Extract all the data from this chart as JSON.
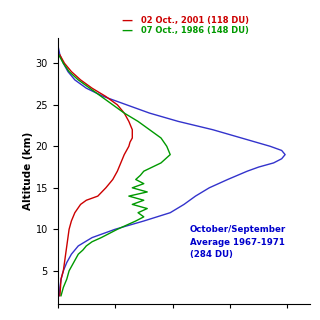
{
  "ylabel": "Altitude (km)",
  "ylim": [
    1,
    33
  ],
  "xlim": [
    0,
    22
  ],
  "yticks": [
    5,
    10,
    15,
    20,
    25,
    30
  ],
  "background_color": "#ffffff",
  "legend1": "02 Oct., 2001 (118 DU)",
  "legend1_color": "#cc0000",
  "legend2": "07 Oct., 1986 (148 DU)",
  "legend2_color": "#009900",
  "annotation": "October/September\nAverage 1967-1971\n(284 DU)",
  "annotation_color": "#0000cc",
  "blue_alt": [
    2,
    3,
    4,
    5,
    6,
    7,
    8,
    9,
    10,
    11,
    12,
    13,
    14,
    15,
    16,
    17,
    17.5,
    18,
    18.5,
    19,
    19.5,
    20,
    21,
    22,
    23,
    24,
    25,
    26,
    27,
    28,
    29,
    30,
    31,
    32
  ],
  "blue_oz": [
    0.15,
    0.2,
    0.3,
    0.5,
    0.8,
    1.2,
    1.8,
    3.0,
    5.0,
    7.5,
    9.8,
    11.0,
    12.0,
    13.2,
    14.8,
    16.5,
    17.5,
    18.8,
    19.5,
    19.8,
    19.5,
    18.5,
    16.0,
    13.5,
    10.5,
    8.0,
    6.0,
    4.0,
    2.5,
    1.5,
    0.9,
    0.5,
    0.2,
    0.05
  ],
  "blue_color": "#3333cc",
  "red_alt": [
    2,
    3,
    4,
    5,
    6,
    7,
    8,
    9,
    10,
    11,
    12,
    13,
    13.5,
    14,
    15,
    16,
    17,
    18,
    19,
    19.5,
    20,
    20.5,
    21,
    22,
    23,
    24,
    25,
    26,
    27,
    28,
    29,
    30,
    31
  ],
  "red_oz": [
    0.2,
    0.25,
    0.3,
    0.5,
    0.6,
    0.7,
    0.8,
    0.9,
    1.0,
    1.2,
    1.5,
    2.0,
    2.5,
    3.5,
    4.2,
    4.8,
    5.2,
    5.5,
    5.8,
    6.0,
    6.2,
    6.3,
    6.5,
    6.5,
    6.2,
    5.8,
    5.2,
    4.2,
    3.0,
    2.0,
    1.2,
    0.6,
    0.2
  ],
  "red_color": "#cc0000",
  "green_alt": [
    2,
    3,
    4,
    5,
    6,
    7,
    7.5,
    8,
    8.5,
    9,
    9.5,
    10,
    10.5,
    11,
    11.5,
    12,
    12.5,
    13,
    13.5,
    14,
    14.5,
    15,
    15.5,
    16,
    16.5,
    17,
    18,
    19,
    20,
    21,
    21.5,
    22,
    23,
    24,
    25,
    26,
    27,
    28,
    29,
    30,
    31
  ],
  "green_oz": [
    0.3,
    0.5,
    0.8,
    1.0,
    1.4,
    1.8,
    2.2,
    2.5,
    3.0,
    3.8,
    4.5,
    5.2,
    6.0,
    6.8,
    7.5,
    7.0,
    7.8,
    6.5,
    7.5,
    6.2,
    7.8,
    6.5,
    7.5,
    6.8,
    7.2,
    7.5,
    9.0,
    9.8,
    9.5,
    9.0,
    8.5,
    8.0,
    7.0,
    5.8,
    4.8,
    3.8,
    2.8,
    1.8,
    1.0,
    0.5,
    0.1
  ],
  "green_color": "#009900"
}
